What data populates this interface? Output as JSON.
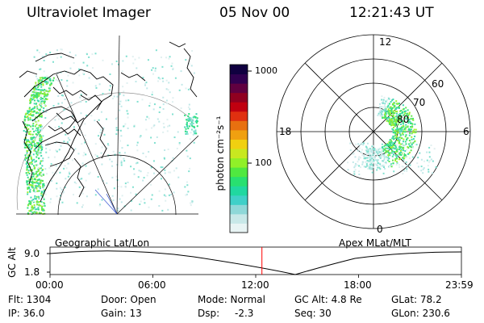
{
  "header": {
    "title": "Ultraviolet Imager",
    "date": "05 Nov 00",
    "time": "12:21:43 UT"
  },
  "colorbar": {
    "unit_label": "photon cm⁻²s⁻¹",
    "ticks": [
      "1000",
      "100"
    ],
    "colors": [
      "#e8f4f4",
      "#c8e8e8",
      "#8fd8d8",
      "#40d0c8",
      "#20d8a0",
      "#28e070",
      "#50e840",
      "#90f028",
      "#c8e820",
      "#f0d010",
      "#f0a010",
      "#e87010",
      "#e03010",
      "#c00010",
      "#900020",
      "#600040",
      "#300050",
      "#100040"
    ]
  },
  "left_map": {
    "label": "Geographic Lat/Lon"
  },
  "right_map": {
    "label": "Apex MLat/MLT",
    "mlt_labels": {
      "top": "12",
      "left": "18",
      "right": "6",
      "bottom": "0"
    },
    "lat_labels": [
      "60",
      "70",
      "80"
    ]
  },
  "altitude_plot": {
    "y_label": "GC Alt",
    "y_ticks": [
      "9.0",
      "1.8"
    ],
    "x_ticks": [
      "00:00",
      "06:00",
      "12:00",
      "18:00",
      "23:59"
    ],
    "current_time_fraction": 0.5151,
    "marker_color": "#ff0000"
  },
  "info": {
    "flt": "Flt: 1304",
    "ip": "IP: 36.0",
    "door": "Door: Open",
    "gain": "Gain: 13",
    "mode": "Mode: Normal",
    "dsp_label": "Dsp:",
    "dsp_value": "-2.3",
    "gcalt": "GC Alt: 4.8 Re",
    "seq": "Seq: 30",
    "glat": "GLat: 78.2",
    "glon": "GLon: 230.6"
  }
}
